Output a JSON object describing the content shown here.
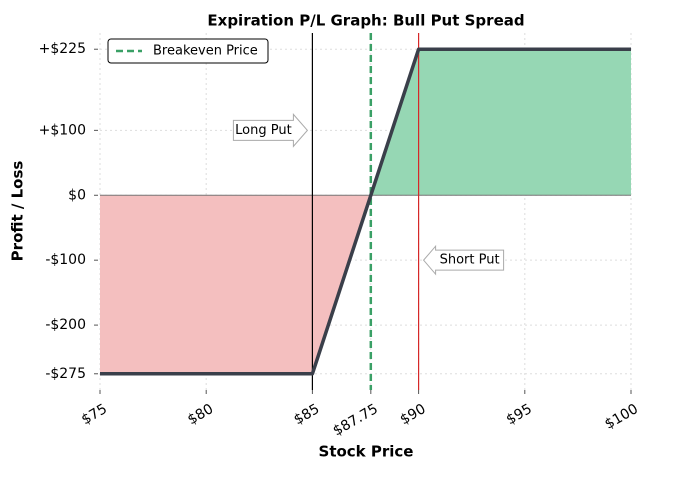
{
  "chart_data": {
    "type": "line",
    "title": "Expiration P/L Graph: Bull Put Spread",
    "xlabel": "Stock Price",
    "ylabel": "Profit / Loss",
    "x": [
      75,
      85,
      87.75,
      90,
      100
    ],
    "values": [
      -275,
      -275,
      0,
      225,
      225
    ],
    "color": "#3a3f4a",
    "loss_color": "#f4bfbf",
    "profit_color": "#96d7b4",
    "xlim": [
      75,
      100
    ],
    "xticks": [
      {
        "value": 75,
        "label": "$75"
      },
      {
        "value": 80,
        "label": "$80"
      },
      {
        "value": 85,
        "label": "$85"
      },
      {
        "value": 87.75,
        "label": "$87.75"
      },
      {
        "value": 90,
        "label": "$90"
      },
      {
        "value": 95,
        "label": "$95"
      },
      {
        "value": 100,
        "label": "$100"
      }
    ],
    "ylim": [
      -300,
      250
    ],
    "yticks": [
      {
        "value": 225,
        "label": "+$225"
      },
      {
        "value": 100,
        "label": "+$100"
      },
      {
        "value": 0,
        "label": "$0"
      },
      {
        "value": -100,
        "label": "-$100"
      },
      {
        "value": -200,
        "label": "-$200"
      },
      {
        "value": -275,
        "label": "-$275"
      }
    ],
    "grid": true,
    "breakeven": {
      "name": "Breakeven Price",
      "x": 87.75,
      "color": "#3aa066"
    },
    "legend": "upper left",
    "annotations": [
      {
        "text": "Long Put",
        "x": 85,
        "y": 100,
        "color": "#000000"
      },
      {
        "text": "Short Put",
        "x": 90,
        "y": -100,
        "color": "#d62728"
      }
    ]
  }
}
